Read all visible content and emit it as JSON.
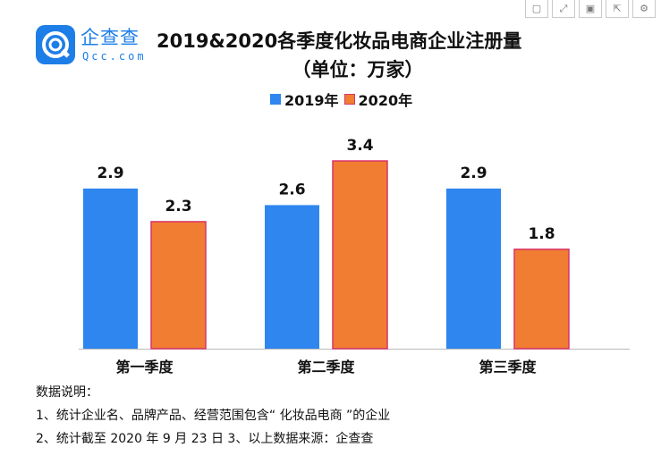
{
  "toolbar": {
    "buttons": [
      {
        "icon": "copy-icon"
      },
      {
        "icon": "fullscreen-icon"
      },
      {
        "icon": "save-icon"
      },
      {
        "icon": "share-icon"
      },
      {
        "icon": "settings-icon"
      }
    ]
  },
  "logo": {
    "name": "企查查",
    "sub": "Qcc.com",
    "color": "#1e7ee8"
  },
  "chart_data": {
    "type": "bar",
    "title": "2019&2020各季度化妆品电商企业注册量",
    "subtitle": "（单位：万家）",
    "categories": [
      "第一季度",
      "第二季度",
      "第三季度"
    ],
    "series": [
      {
        "name": "2019年",
        "values": [
          2.9,
          2.6,
          2.9
        ],
        "color": "#2e86ee"
      },
      {
        "name": "2020年",
        "values": [
          2.3,
          3.4,
          1.8
        ],
        "color": "#f07d32",
        "stroke": "#d8336b"
      }
    ],
    "ylim": [
      0,
      3.4
    ],
    "grid": false,
    "legend_position": "top-center",
    "xlabel": "",
    "ylabel": ""
  },
  "notes": {
    "heading": "数据说明：",
    "line1": "1、统计企业名、品牌产品、经营范围包含“ 化妆品电商 ”的企业",
    "line2": "2、统计截至 2020 年 9 月 23 日 3、以上数据来源：企查查"
  }
}
